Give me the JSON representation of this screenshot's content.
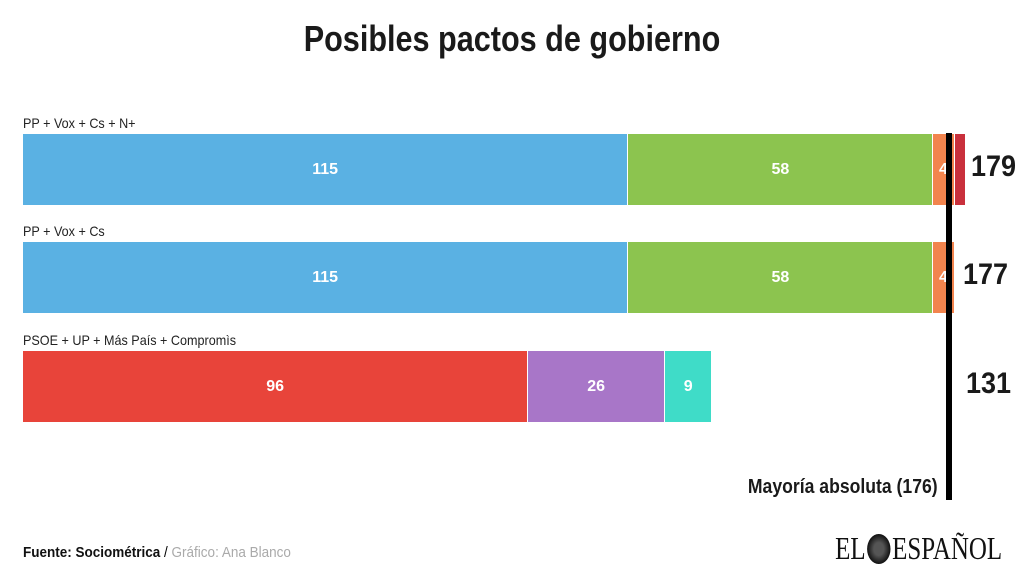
{
  "chart_data": {
    "type": "bar",
    "orientation": "horizontal-stacked",
    "title": "Posibles pactos de gobierno",
    "xlim": [
      0,
      179
    ],
    "grid": false,
    "rows": [
      {
        "label": "PP + Vox + Cs + N+",
        "total": "179",
        "segments": [
          {
            "value": 115,
            "label": "115",
            "color": "#5ab1e3"
          },
          {
            "value": 58,
            "label": "58",
            "color": "#8cc44f"
          },
          {
            "value": 4,
            "label": "4",
            "color": "#f2844e"
          },
          {
            "value": 2,
            "label": "",
            "color": "#c9303c"
          }
        ]
      },
      {
        "label": "PP + Vox + Cs",
        "total": "177",
        "segments": [
          {
            "value": 115,
            "label": "115",
            "color": "#5ab1e3"
          },
          {
            "value": 58,
            "label": "58",
            "color": "#8cc44f"
          },
          {
            "value": 4,
            "label": "4",
            "color": "#f2844e"
          }
        ]
      },
      {
        "label": "PSOE + UP + Más País + Compromìs",
        "total": "131",
        "segments": [
          {
            "value": 96,
            "label": "96",
            "color": "#e8443a"
          },
          {
            "value": 26,
            "label": "26",
            "color": "#a876c8"
          },
          {
            "value": 9,
            "label": "9",
            "color": "#3fdcc8"
          }
        ]
      }
    ],
    "reference_line": {
      "value": 176,
      "label": "Mayoría absoluta (176)",
      "color": "#000000"
    }
  },
  "footer": {
    "source": "Fuente: Sociométrica",
    "separator": " / ",
    "credit": "Gráfico: Ana Blanco"
  },
  "logo": {
    "left": "EL",
    "right": "ESPAÑOL"
  }
}
